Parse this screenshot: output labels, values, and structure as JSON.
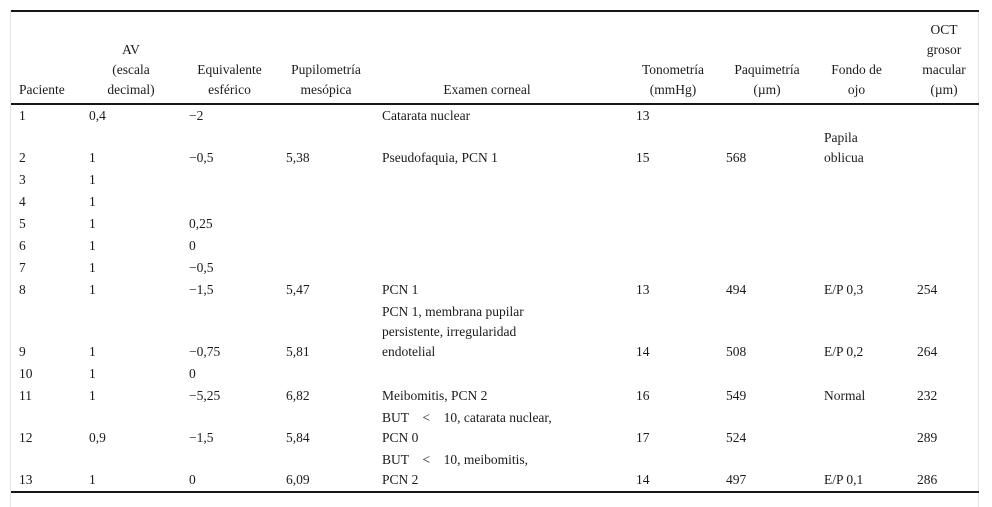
{
  "table": {
    "columns": [
      {
        "header": "Paciente"
      },
      {
        "header": "AV\n(escala\ndecimal)"
      },
      {
        "header": "Equivalente\nesférico"
      },
      {
        "header": "Pupilometría\nmesópica"
      },
      {
        "header": "Examen corneal"
      },
      {
        "header": "Tonometría\n(mmHg)"
      },
      {
        "header": "Paquimetría\n(µm)"
      },
      {
        "header": "Fondo de\nojo"
      },
      {
        "header": "OCT\ngrosor\nmacular\n(µm)"
      }
    ],
    "rows": [
      [
        "1",
        "0,4",
        "−2",
        "",
        "Catarata nuclear",
        "13",
        "",
        "",
        ""
      ],
      [
        "2",
        "1",
        "−0,5",
        "5,38",
        "Pseudofaquia, PCN 1",
        "15",
        "568",
        "Papila\noblicua",
        ""
      ],
      [
        "3",
        "1",
        "",
        "",
        "",
        "",
        "",
        "",
        ""
      ],
      [
        "4",
        "1",
        "",
        "",
        "",
        "",
        "",
        "",
        ""
      ],
      [
        "5",
        "1",
        "0,25",
        "",
        "",
        "",
        "",
        "",
        ""
      ],
      [
        "6",
        "1",
        "0",
        "",
        "",
        "",
        "",
        "",
        ""
      ],
      [
        "7",
        "1",
        "−0,5",
        "",
        "",
        "",
        "",
        "",
        ""
      ],
      [
        "8",
        "1",
        "−1,5",
        "5,47",
        "PCN 1",
        "13",
        "494",
        "E/P 0,3",
        "254"
      ],
      [
        "9",
        "1",
        "−0,75",
        "5,81",
        "PCN 1, membrana pupilar\npersistente, irregularidad\nendotelial",
        "14",
        "508",
        "E/P 0,2",
        "264"
      ],
      [
        "10",
        "1",
        "0",
        "",
        "",
        "",
        "",
        "",
        ""
      ],
      [
        "11",
        "1",
        "−5,25",
        "6,82",
        "Meibomitis, PCN 2",
        "16",
        "549",
        "Normal",
        "232"
      ],
      [
        "12",
        "0,9",
        "−1,5",
        "5,84",
        "BUT < 10, catarata nuclear,\nPCN 0",
        "17",
        "524",
        "",
        "289"
      ],
      [
        "13",
        "1",
        "0",
        "6,09",
        "BUT < 10, meibomitis,\nPCN 2",
        "14",
        "497",
        "E/P 0,1",
        "286"
      ]
    ]
  }
}
